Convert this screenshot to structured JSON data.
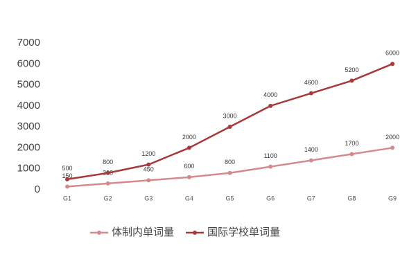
{
  "chart_data": {
    "type": "line",
    "categories": [
      "G1",
      "G2",
      "G3",
      "G4",
      "G5",
      "G6",
      "G7",
      "G8",
      "G9"
    ],
    "series": [
      {
        "name": "体制内单词量",
        "color": "#d48a8c",
        "values": [
          150,
          300,
          450,
          600,
          800,
          1100,
          1400,
          1700,
          2000
        ]
      },
      {
        "name": "国际学校单词量",
        "color": "#a8393b",
        "values": [
          500,
          800,
          1200,
          2000,
          3000,
          4000,
          4600,
          5200,
          6000
        ]
      }
    ],
    "ylim": [
      0,
      7000
    ],
    "yticks": [
      0,
      1000,
      2000,
      3000,
      4000,
      5000,
      6000,
      7000
    ],
    "grid": false,
    "legend": "bottom"
  }
}
